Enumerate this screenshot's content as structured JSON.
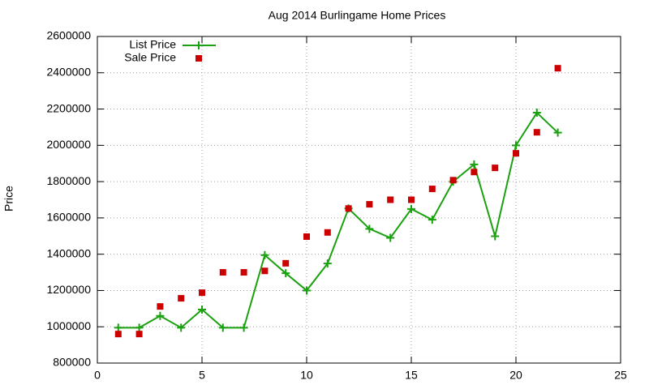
{
  "chart_data": {
    "type": "line",
    "title": "Aug 2014 Burlingame Home Prices",
    "y_label": "Price",
    "x": [
      1,
      2,
      3,
      4,
      5,
      6,
      7,
      8,
      9,
      10,
      11,
      12,
      13,
      14,
      15,
      16,
      17,
      18,
      19,
      20,
      21,
      22
    ],
    "series": [
      {
        "name": "List Price",
        "color": "#1aa10f",
        "marker": "plus",
        "line": true,
        "values": [
          995000,
          995000,
          1060000,
          995000,
          1095000,
          995000,
          995000,
          1395000,
          1295000,
          1200000,
          1349000,
          1652000,
          1540000,
          1490000,
          1649000,
          1590000,
          1800000,
          1895000,
          1499000,
          2000000,
          2180000,
          2070000
        ]
      },
      {
        "name": "Sale Price",
        "color": "#cc0000",
        "marker": "square",
        "line": false,
        "values": [
          960000,
          960000,
          1112000,
          1157000,
          1188000,
          1300000,
          1300000,
          1308000,
          1350000,
          1497000,
          1520000,
          1652000,
          1675000,
          1700000,
          1700000,
          1760000,
          1808000,
          1853000,
          1876000,
          1956000,
          2072000,
          2425000
        ]
      }
    ],
    "xlim": [
      0,
      25
    ],
    "xticks": [
      0,
      5,
      10,
      15,
      20,
      25
    ],
    "ylim": [
      800000,
      2600000
    ],
    "yticks": [
      800000,
      1000000,
      1200000,
      1400000,
      1600000,
      1800000,
      2000000,
      2200000,
      2400000,
      2600000
    ],
    "grid": true,
    "legend": "top-left"
  }
}
